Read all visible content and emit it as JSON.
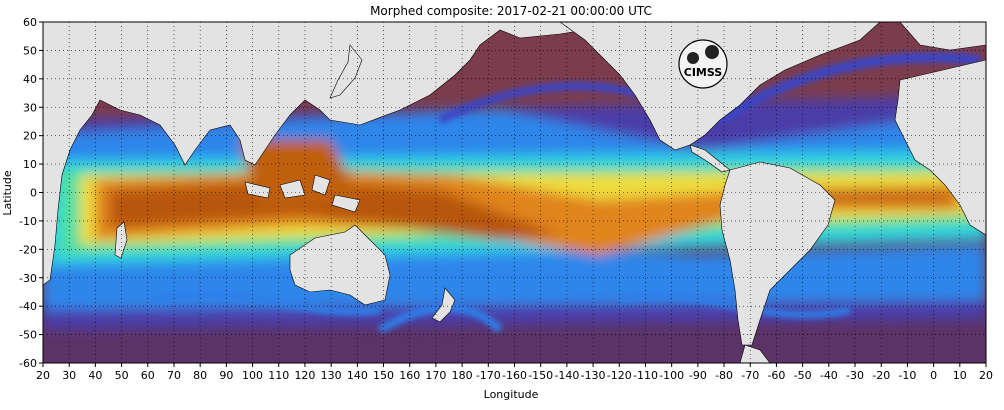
{
  "title": "Morphed composite: 2017-02-21 00:00:00 UTC",
  "xlabel": "Longitude",
  "ylabel": "Latitude",
  "lon_ticks": [
    "20",
    "30",
    "40",
    "50",
    "60",
    "70",
    "80",
    "90",
    "100",
    "110",
    "120",
    "130",
    "140",
    "150",
    "160",
    "170",
    "180",
    "-170",
    "-160",
    "-150",
    "-140",
    "-130",
    "-120",
    "-110",
    "-100",
    "-90",
    "-80",
    "-70",
    "-60",
    "-50",
    "-40",
    "-30",
    "-20",
    "-10",
    "0",
    "10",
    "20"
  ],
  "lat_ticks": [
    "60",
    "50",
    "40",
    "30",
    "20",
    "10",
    "0",
    "-10",
    "-20",
    "-30",
    "-40",
    "-50",
    "-60"
  ],
  "logo_text": "CIMSS",
  "colors": {
    "land": "#e3e3e3",
    "coast": "#000000",
    "dry": "#7a3a4c",
    "dry_alt": "#5a2f6e",
    "low": "#3b3fb5",
    "mid_low": "#2f8ff0",
    "mid": "#2fd3e6",
    "mid_high": "#49e3a4",
    "high": "#f0e33a",
    "very_high": "#e58a1e",
    "max": "#b8560f"
  }
}
